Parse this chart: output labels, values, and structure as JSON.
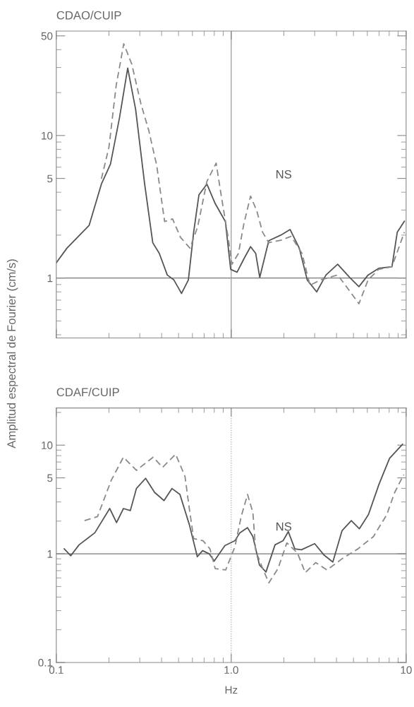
{
  "chart_data": [
    {
      "type": "line",
      "title": "CDAO/CUIP",
      "ylabel": "Amplitud espectral de Fourier (cm/s)",
      "log": "xy",
      "xlim": [
        0.1,
        10
      ],
      "ylim": [
        0.38,
        54
      ],
      "xticks": [
        0.1,
        1,
        10
      ],
      "yticks": [
        1,
        5,
        10,
        50
      ],
      "tick_labels": "y",
      "grid": false,
      "legend": false,
      "series": [
        {
          "color": "#555555",
          "line_style": "solid",
          "x": [
            0.1,
            0.115,
            0.132,
            0.154,
            0.181,
            0.204,
            0.23,
            0.256,
            0.284,
            0.32,
            0.356,
            0.388,
            0.431,
            0.47,
            0.52,
            0.569,
            0.61,
            0.654,
            0.726,
            0.806,
            0.926,
            0.993,
            1.08,
            1.18,
            1.29,
            1.38,
            1.456,
            1.64,
            1.92,
            2.17,
            2.45,
            2.72,
            3.08,
            3.48,
            4.06,
            4.76,
            5.37,
            6.06,
            6.96,
            8.3,
            8.9,
            9.77
          ],
          "values": [
            1.28,
            1.62,
            1.93,
            2.34,
            4.56,
            6.3,
            13.4,
            29.7,
            15.3,
            4.56,
            1.77,
            1.49,
            1.05,
            0.97,
            0.78,
            0.97,
            2.1,
            3.84,
            4.56,
            3.37,
            2.49,
            1.15,
            1.1,
            1.36,
            1.66,
            1.49,
            1.01,
            1.83,
            2.0,
            2.19,
            1.62,
            0.97,
            0.8,
            1.05,
            1.25,
            1.01,
            0.87,
            1.05,
            1.17,
            1.2,
            2.1,
            2.5
          ]
        },
        {
          "color": "#8a8a8a",
          "line_style": "dashed",
          "x": [
            0.181,
            0.2,
            0.22,
            0.243,
            0.27,
            0.305,
            0.338,
            0.375,
            0.416,
            0.462,
            0.513,
            0.581,
            0.643,
            0.726,
            0.82,
            0.88,
            0.96,
            1.01,
            1.1,
            1.18,
            1.29,
            1.4,
            1.51,
            1.64,
            1.92,
            2.2,
            2.54,
            2.82,
            3.24,
            4.06,
            4.76,
            5.37,
            6.06,
            6.96,
            8.3,
            9.77
          ],
          "values": [
            4.96,
            8.3,
            22.5,
            44,
            31.7,
            16.6,
            10.8,
            6.17,
            2.49,
            2.6,
            1.93,
            1.62,
            2.29,
            4.76,
            6.4,
            3.68,
            1.93,
            1.25,
            1.49,
            2.39,
            3.76,
            2.96,
            2.1,
            1.77,
            1.84,
            1.96,
            1.49,
            0.89,
            0.97,
            1.05,
            0.81,
            0.66,
            0.97,
            1.15,
            1.2,
            2.1
          ]
        }
      ],
      "ref_lines": [
        {
          "axis": "y",
          "value": 1,
          "color": "#777777",
          "line_style": "solid"
        },
        {
          "axis": "x",
          "value": 1,
          "color": "#999999",
          "line_style": "solid"
        }
      ],
      "annotations": [
        "NS"
      ]
    },
    {
      "type": "line",
      "title": "CDAF/CUIP",
      "xlabel": "Hz",
      "log": "xy",
      "xlim": [
        0.1,
        10
      ],
      "ylim": [
        0.1,
        22
      ],
      "xticks": [
        0.1,
        {
          "value": 1,
          "label": "1.0"
        },
        10
      ],
      "yticks": [
        0.1,
        1,
        5,
        10
      ],
      "grid": false,
      "legend": false,
      "series": [
        {
          "color": "#555555",
          "line_style": "solid",
          "x": [
            0.111,
            0.121,
            0.135,
            0.166,
            0.202,
            0.221,
            0.242,
            0.265,
            0.287,
            0.324,
            0.365,
            0.413,
            0.458,
            0.509,
            0.576,
            0.64,
            0.686,
            0.748,
            0.8,
            0.92,
            1.05,
            1.12,
            1.24,
            1.33,
            1.45,
            1.58,
            1.78,
            1.98,
            2.12,
            2.31,
            2.52,
            3.0,
            3.38,
            3.81,
            4.3,
            4.86,
            5.4,
            6.09,
            6.99,
            8.04,
            9.54
          ],
          "values": [
            1.11,
            0.96,
            1.21,
            1.56,
            2.61,
            1.94,
            2.61,
            2.5,
            3.99,
            4.95,
            3.67,
            3.09,
            3.99,
            3.52,
            1.86,
            0.94,
            1.07,
            1.0,
            0.86,
            1.19,
            1.32,
            1.56,
            1.74,
            1.44,
            0.79,
            0.68,
            1.21,
            1.32,
            1.6,
            1.11,
            1.09,
            1.24,
            0.98,
            0.84,
            1.63,
            2.02,
            1.7,
            2.3,
            4.35,
            7.57,
            10.2
          ]
        },
        {
          "color": "#8a8a8a",
          "line_style": "dashed",
          "x": [
            0.145,
            0.172,
            0.206,
            0.242,
            0.287,
            0.358,
            0.405,
            0.481,
            0.544,
            0.576,
            0.61,
            0.69,
            0.756,
            0.81,
            0.93,
            1.05,
            1.14,
            1.24,
            1.33,
            1.38,
            1.5,
            1.64,
            1.85,
            2.08,
            2.39,
            2.65,
            3.04,
            3.53,
            4.3,
            5.3,
            6.5,
            7.75,
            8.6,
            9.7
          ],
          "values": [
            2.02,
            2.2,
            4.74,
            7.75,
            5.86,
            7.75,
            6.25,
            8.24,
            5.17,
            2.61,
            1.38,
            1.32,
            1.11,
            0.73,
            0.71,
            1.16,
            2.2,
            3.52,
            2.4,
            1.07,
            0.76,
            0.54,
            0.73,
            1.26,
            1.02,
            0.67,
            0.83,
            0.71,
            0.9,
            1.11,
            1.44,
            2.29,
            3.67,
            5.37
          ]
        }
      ],
      "ref_lines": [
        {
          "axis": "y",
          "value": 1,
          "color": "#777777",
          "line_style": "solid"
        },
        {
          "axis": "x",
          "value": 1,
          "color": "#aaaaaa",
          "line_style": "dotted"
        }
      ],
      "annotations": [
        "NS"
      ]
    }
  ]
}
